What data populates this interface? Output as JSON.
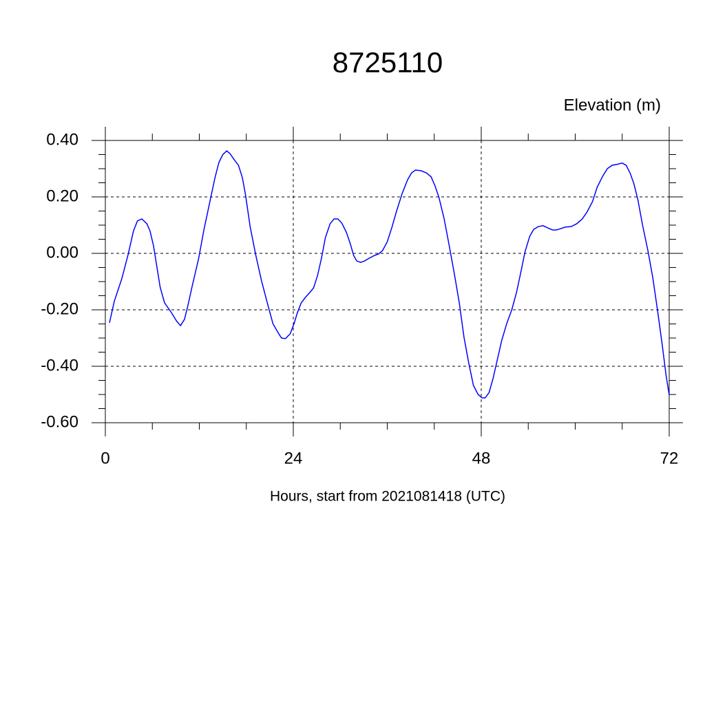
{
  "chart_data": {
    "type": "line",
    "title": "8725110",
    "ylabel": "Elevation (m)",
    "xlabel": "Hours, start from 2021081418 (UTC)",
    "xlim": [
      0,
      72
    ],
    "ylim": [
      -0.6,
      0.4
    ],
    "xticks": [
      0,
      24,
      48,
      72
    ],
    "yticks": [
      {
        "value": 0.4,
        "label": "0.40"
      },
      {
        "value": 0.2,
        "label": "0.20"
      },
      {
        "value": 0,
        "label": "0.00"
      },
      {
        "value": -0.2,
        "label": "-0.20"
      },
      {
        "value": -0.4,
        "label": "-0.40"
      },
      {
        "value": -0.6,
        "label": "-0.60"
      }
    ],
    "xminorticks": [
      6,
      12,
      18,
      30,
      36,
      42,
      54,
      60,
      66
    ],
    "yminorticks": [
      0.35,
      0.3,
      0.25,
      0.15,
      0.1,
      0.05,
      -0.05,
      -0.1,
      -0.15,
      -0.25,
      -0.3,
      -0.35,
      -0.45,
      -0.5,
      -0.55
    ],
    "grid": true,
    "series": [
      {
        "name": "Elevation",
        "color": "#0000ff",
        "x": [
          0.53,
          1.14,
          2.1,
          2.9,
          3.6,
          4.1,
          4.66,
          5.3,
          5.7,
          6.15,
          7.0,
          7.56,
          8.44,
          9.1,
          9.6,
          10.1,
          10.5,
          11.1,
          11.9,
          12.6,
          13.4,
          14.0,
          14.5,
          15.0,
          15.5,
          15.9,
          16.4,
          17.0,
          17.5,
          17.9,
          18.5,
          19.2,
          19.95,
          20.8,
          21.4,
          22.1,
          22.5,
          23.0,
          23.6,
          24.1,
          24.5,
          25.0,
          25.6,
          26.1,
          26.6,
          27.1,
          27.6,
          28.1,
          28.7,
          29.2,
          29.7,
          30.2,
          30.8,
          31.3,
          31.7,
          32.1,
          32.6,
          33.1,
          33.7,
          34.4,
          34.9,
          35.4,
          36.0,
          36.6,
          37.2,
          37.9,
          38.6,
          39.1,
          39.6,
          40.3,
          41.0,
          41.6,
          42.1,
          42.6,
          43.25,
          43.9,
          44.6,
          45.2,
          45.8,
          46.4,
          47.0,
          47.6,
          48.1,
          48.5,
          49.0,
          49.5,
          50.1,
          50.6,
          51.25,
          51.9,
          52.5,
          53.1,
          53.6,
          54.2,
          54.7,
          55.3,
          55.9,
          56.5,
          57.1,
          57.6,
          58.2,
          58.7,
          59.5,
          60.2,
          60.9,
          61.5,
          62.2,
          62.8,
          63.5,
          64.1,
          64.7,
          65.3,
          66.0,
          66.5,
          67.0,
          67.5,
          68.0,
          68.6,
          69.3,
          69.9,
          70.5,
          71.1,
          71.6,
          72.0
        ],
        "values": [
          -0.246,
          -0.17,
          -0.09,
          -0.005,
          0.08,
          0.115,
          0.122,
          0.105,
          0.08,
          0.027,
          -0.12,
          -0.175,
          -0.21,
          -0.24,
          -0.256,
          -0.234,
          -0.19,
          -0.115,
          -0.02,
          0.085,
          0.19,
          0.268,
          0.322,
          0.35,
          0.363,
          0.354,
          0.334,
          0.312,
          0.268,
          0.207,
          0.093,
          -0.005,
          -0.098,
          -0.188,
          -0.249,
          -0.283,
          -0.3,
          -0.302,
          -0.285,
          -0.249,
          -0.212,
          -0.176,
          -0.154,
          -0.139,
          -0.122,
          -0.078,
          -0.017,
          0.056,
          0.105,
          0.122,
          0.122,
          0.107,
          0.073,
          0.032,
          -0.007,
          -0.027,
          -0.032,
          -0.027,
          -0.017,
          -0.007,
          -0.002,
          0.01,
          0.041,
          0.093,
          0.151,
          0.212,
          0.261,
          0.285,
          0.295,
          0.293,
          0.285,
          0.271,
          0.239,
          0.198,
          0.124,
          0.029,
          -0.078,
          -0.176,
          -0.298,
          -0.388,
          -0.468,
          -0.5,
          -0.512,
          -0.512,
          -0.493,
          -0.444,
          -0.371,
          -0.31,
          -0.249,
          -0.2,
          -0.139,
          -0.061,
          0.007,
          0.061,
          0.085,
          0.095,
          0.098,
          0.09,
          0.083,
          0.083,
          0.088,
          0.093,
          0.095,
          0.105,
          0.122,
          0.146,
          0.183,
          0.234,
          0.273,
          0.3,
          0.312,
          0.315,
          0.32,
          0.312,
          0.285,
          0.246,
          0.19,
          0.1,
          0.007,
          -0.085,
          -0.2,
          -0.322,
          -0.432,
          -0.502
        ]
      }
    ]
  }
}
